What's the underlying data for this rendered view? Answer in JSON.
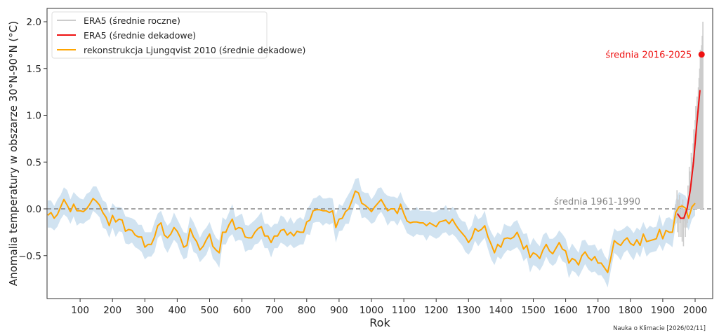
{
  "chart_data": {
    "type": "line",
    "title": "",
    "xlabel": "Rok",
    "ylabel": "Anomalia temperatury w obszarze 30°N-90°N (°C)",
    "xlim": [
      0,
      2030
    ],
    "ylim": [
      -0.88,
      2.14
    ],
    "x_ticks": [
      100,
      200,
      300,
      400,
      500,
      600,
      700,
      800,
      900,
      1000,
      1100,
      1200,
      1300,
      1400,
      1500,
      1600,
      1700,
      1800,
      1900,
      2000
    ],
    "y_ticks": [
      -0.5,
      0.0,
      0.5,
      1.0,
      1.5,
      2.0
    ],
    "y_tick_labels": [
      "−0.5",
      "0.0",
      "0.5",
      "1.0",
      "1.5",
      "2.0"
    ],
    "grid": false,
    "legend_position": "upper left",
    "legend": [
      {
        "label": "ERA5 (średnie roczne)",
        "color": "#cccccc"
      },
      {
        "label": "ERA5 (średnie dekadowe)",
        "color": "#ee1111"
      },
      {
        "label": "rekonstrukcja Ljungqvist 2010 (średnie dekadowe)",
        "color": "#ffa500"
      }
    ],
    "reference_line": {
      "y": 0.0,
      "label": "średnia 1961-1990",
      "style": "dashed",
      "color": "#888888"
    },
    "annotation": {
      "label": "średnia 2016-2025",
      "x": 2020,
      "y": 1.65,
      "color": "#ee1111"
    },
    "series": [
      {
        "name": "rekonstrukcja Ljungqvist 2010 (średnie dekadowe)",
        "color": "#ffa500",
        "band_color": "#c6dced",
        "band_halfwidth": 0.13,
        "x": [
          0,
          10,
          20,
          30,
          40,
          50,
          60,
          70,
          80,
          90,
          100,
          110,
          120,
          130,
          140,
          150,
          160,
          170,
          180,
          190,
          200,
          210,
          220,
          230,
          240,
          250,
          260,
          270,
          280,
          290,
          300,
          310,
          320,
          330,
          340,
          350,
          360,
          370,
          380,
          390,
          400,
          410,
          420,
          430,
          440,
          450,
          460,
          470,
          480,
          490,
          500,
          510,
          520,
          530,
          540,
          550,
          560,
          570,
          580,
          590,
          600,
          610,
          620,
          630,
          640,
          650,
          660,
          670,
          680,
          690,
          700,
          710,
          720,
          730,
          740,
          750,
          760,
          770,
          780,
          790,
          800,
          810,
          820,
          830,
          840,
          850,
          860,
          870,
          880,
          890,
          900,
          910,
          920,
          930,
          940,
          950,
          960,
          970,
          980,
          990,
          1000,
          1010,
          1020,
          1030,
          1040,
          1050,
          1060,
          1070,
          1080,
          1090,
          1100,
          1110,
          1120,
          1130,
          1140,
          1150,
          1160,
          1170,
          1180,
          1190,
          1200,
          1210,
          1220,
          1230,
          1240,
          1250,
          1260,
          1270,
          1280,
          1290,
          1300,
          1310,
          1320,
          1330,
          1340,
          1350,
          1360,
          1370,
          1380,
          1390,
          1400,
          1410,
          1420,
          1430,
          1440,
          1450,
          1460,
          1470,
          1480,
          1490,
          1500,
          1510,
          1520,
          1530,
          1540,
          1550,
          1560,
          1570,
          1580,
          1590,
          1600,
          1610,
          1620,
          1630,
          1640,
          1650,
          1660,
          1670,
          1680,
          1690,
          1700,
          1710,
          1720,
          1730,
          1740,
          1750,
          1760,
          1770,
          1780,
          1790,
          1800,
          1810,
          1820,
          1830,
          1840,
          1850,
          1860,
          1870,
          1880,
          1890,
          1900,
          1910,
          1920,
          1930,
          1940,
          1950,
          1960,
          1970,
          1980,
          1990,
          2000
        ],
        "values": [
          -0.07,
          -0.04,
          -0.1,
          -0.06,
          0.02,
          0.1,
          0.04,
          -0.03,
          0.05,
          -0.02,
          -0.02,
          -0.03,
          0.0,
          0.05,
          0.11,
          0.08,
          0.04,
          -0.04,
          -0.09,
          -0.18,
          -0.07,
          -0.14,
          -0.11,
          -0.12,
          -0.24,
          -0.22,
          -0.23,
          -0.28,
          -0.3,
          -0.3,
          -0.41,
          -0.38,
          -0.38,
          -0.3,
          -0.18,
          -0.15,
          -0.28,
          -0.31,
          -0.27,
          -0.2,
          -0.24,
          -0.31,
          -0.41,
          -0.39,
          -0.21,
          -0.3,
          -0.35,
          -0.44,
          -0.4,
          -0.33,
          -0.27,
          -0.4,
          -0.44,
          -0.47,
          -0.25,
          -0.25,
          -0.17,
          -0.11,
          -0.22,
          -0.2,
          -0.21,
          -0.3,
          -0.31,
          -0.31,
          -0.25,
          -0.21,
          -0.19,
          -0.29,
          -0.29,
          -0.36,
          -0.29,
          -0.29,
          -0.23,
          -0.22,
          -0.28,
          -0.25,
          -0.29,
          -0.24,
          -0.25,
          -0.25,
          -0.14,
          -0.12,
          -0.02,
          -0.01,
          -0.01,
          -0.02,
          -0.02,
          -0.04,
          -0.02,
          -0.2,
          -0.11,
          -0.1,
          -0.03,
          0.0,
          0.09,
          0.19,
          0.17,
          0.06,
          0.04,
          0.01,
          -0.03,
          0.02,
          0.06,
          0.1,
          0.04,
          -0.02,
          0.0,
          0.0,
          -0.05,
          0.05,
          -0.05,
          -0.13,
          -0.15,
          -0.14,
          -0.14,
          -0.15,
          -0.15,
          -0.18,
          -0.15,
          -0.17,
          -0.19,
          -0.14,
          -0.13,
          -0.12,
          -0.16,
          -0.11,
          -0.17,
          -0.22,
          -0.26,
          -0.3,
          -0.36,
          -0.31,
          -0.21,
          -0.24,
          -0.22,
          -0.18,
          -0.3,
          -0.38,
          -0.47,
          -0.38,
          -0.41,
          -0.32,
          -0.31,
          -0.32,
          -0.3,
          -0.25,
          -0.33,
          -0.43,
          -0.39,
          -0.52,
          -0.47,
          -0.49,
          -0.53,
          -0.44,
          -0.38,
          -0.45,
          -0.48,
          -0.42,
          -0.36,
          -0.43,
          -0.45,
          -0.58,
          -0.53,
          -0.55,
          -0.6,
          -0.5,
          -0.46,
          -0.52,
          -0.55,
          -0.51,
          -0.58,
          -0.58,
          -0.63,
          -0.68,
          -0.52,
          -0.34,
          -0.37,
          -0.39,
          -0.34,
          -0.31,
          -0.37,
          -0.39,
          -0.33,
          -0.39,
          -0.27,
          -0.35,
          -0.34,
          -0.33,
          -0.32,
          -0.22,
          -0.32,
          -0.23,
          -0.25,
          -0.25,
          -0.04,
          0.02,
          0.03,
          0.01,
          -0.1,
          0.02,
          0.06
        ]
      },
      {
        "name": "ERA5 (średnie dekadowe)",
        "color": "#ee1111",
        "x": [
          1945,
          1955,
          1965,
          1975,
          1985,
          1995,
          2005,
          2015
        ],
        "values": [
          -0.05,
          -0.1,
          -0.1,
          0.0,
          0.2,
          0.5,
          0.9,
          1.27
        ]
      },
      {
        "name": "ERA5 (średnie roczne)",
        "color": "#cccccc",
        "x": [
          1940,
          1942,
          1944,
          1946,
          1948,
          1950,
          1952,
          1954,
          1956,
          1958,
          1960,
          1962,
          1964,
          1966,
          1968,
          1970,
          1972,
          1974,
          1976,
          1978,
          1980,
          1982,
          1984,
          1986,
          1988,
          1990,
          1992,
          1994,
          1996,
          1998,
          2000,
          2002,
          2004,
          2006,
          2008,
          2010,
          2012,
          2014,
          2016,
          2018,
          2020,
          2022,
          2024
        ],
        "values": [
          0.05,
          -0.1,
          0.2,
          -0.25,
          0.1,
          -0.3,
          0.15,
          -0.15,
          -0.3,
          0.05,
          -0.35,
          0.1,
          -0.4,
          -0.1,
          -0.2,
          -0.3,
          0.0,
          -0.2,
          -0.15,
          0.25,
          0.1,
          0.45,
          0.4,
          0.3,
          0.6,
          0.55,
          0.5,
          0.7,
          0.85,
          0.8,
          0.95,
          1.1,
          1.05,
          1.2,
          1.15,
          1.3,
          1.4,
          1.5,
          1.7,
          1.65,
          1.75,
          1.85,
          2.0
        ]
      }
    ]
  },
  "footer": {
    "credit": "Nauka o Klimacie [2026/02/11]"
  }
}
